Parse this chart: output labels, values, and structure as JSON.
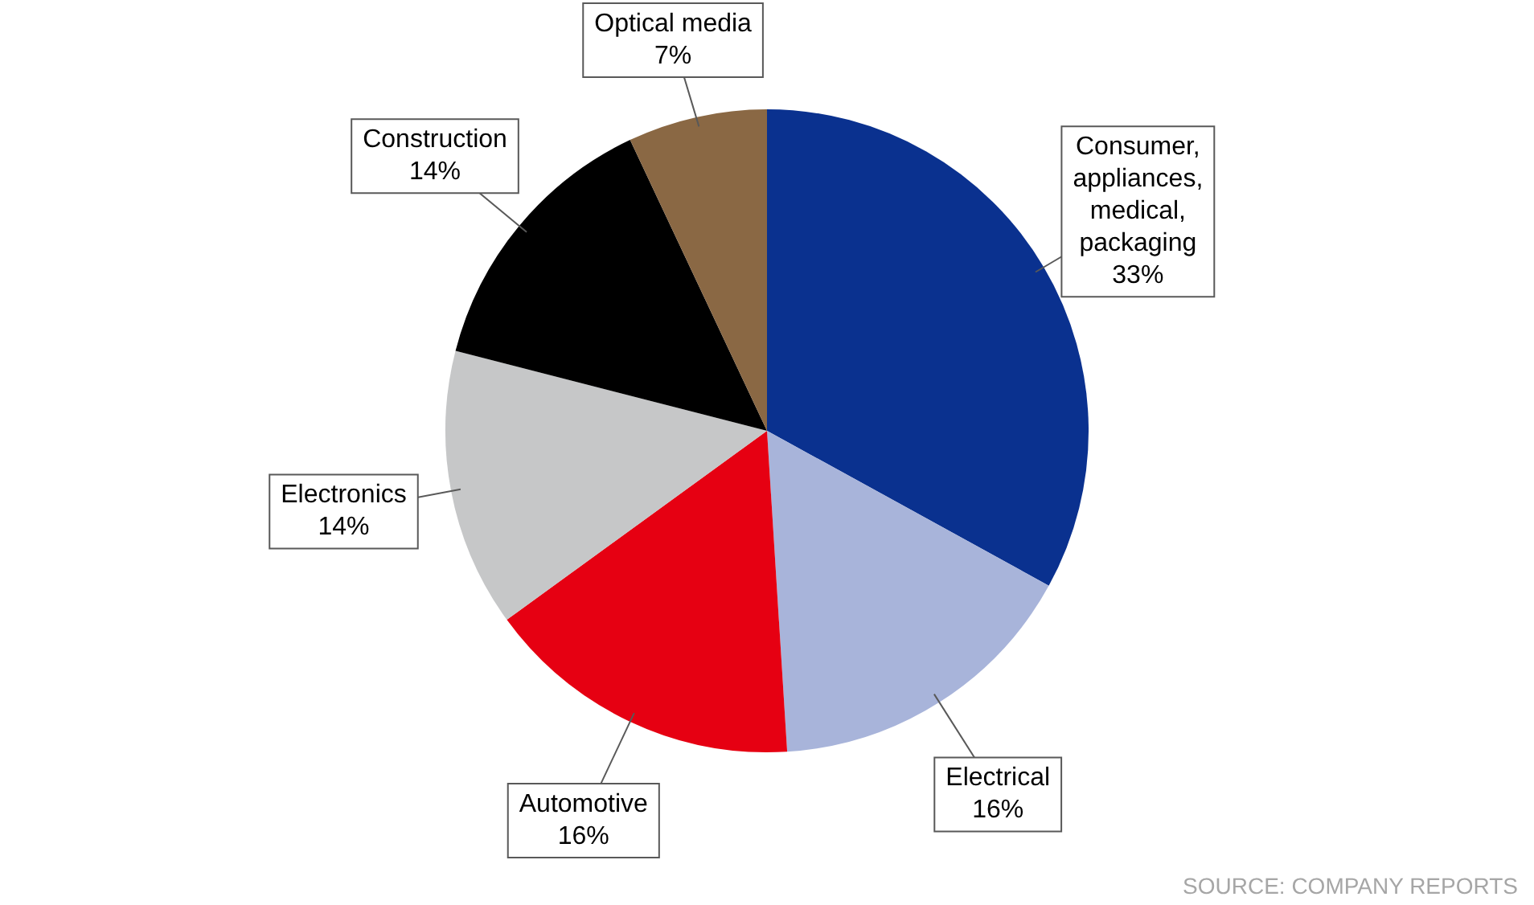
{
  "chart_data": {
    "type": "pie",
    "categories": [
      "Consumer, appliances, medical, packaging",
      "Electrical",
      "Automotive",
      "Electronics",
      "Construction",
      "Optical media"
    ],
    "values": [
      33,
      16,
      16,
      14,
      14,
      7
    ],
    "value_labels": [
      "33%",
      "16%",
      "16%",
      "14%",
      "14%",
      "7%"
    ],
    "colors": [
      "#0a318f",
      "#a8b4da",
      "#e60012",
      "#c6c7c8",
      "#000000",
      "#8a6844"
    ],
    "legend": false,
    "annotations": [
      "SOURCE: COMPANY REPORTS"
    ]
  }
}
